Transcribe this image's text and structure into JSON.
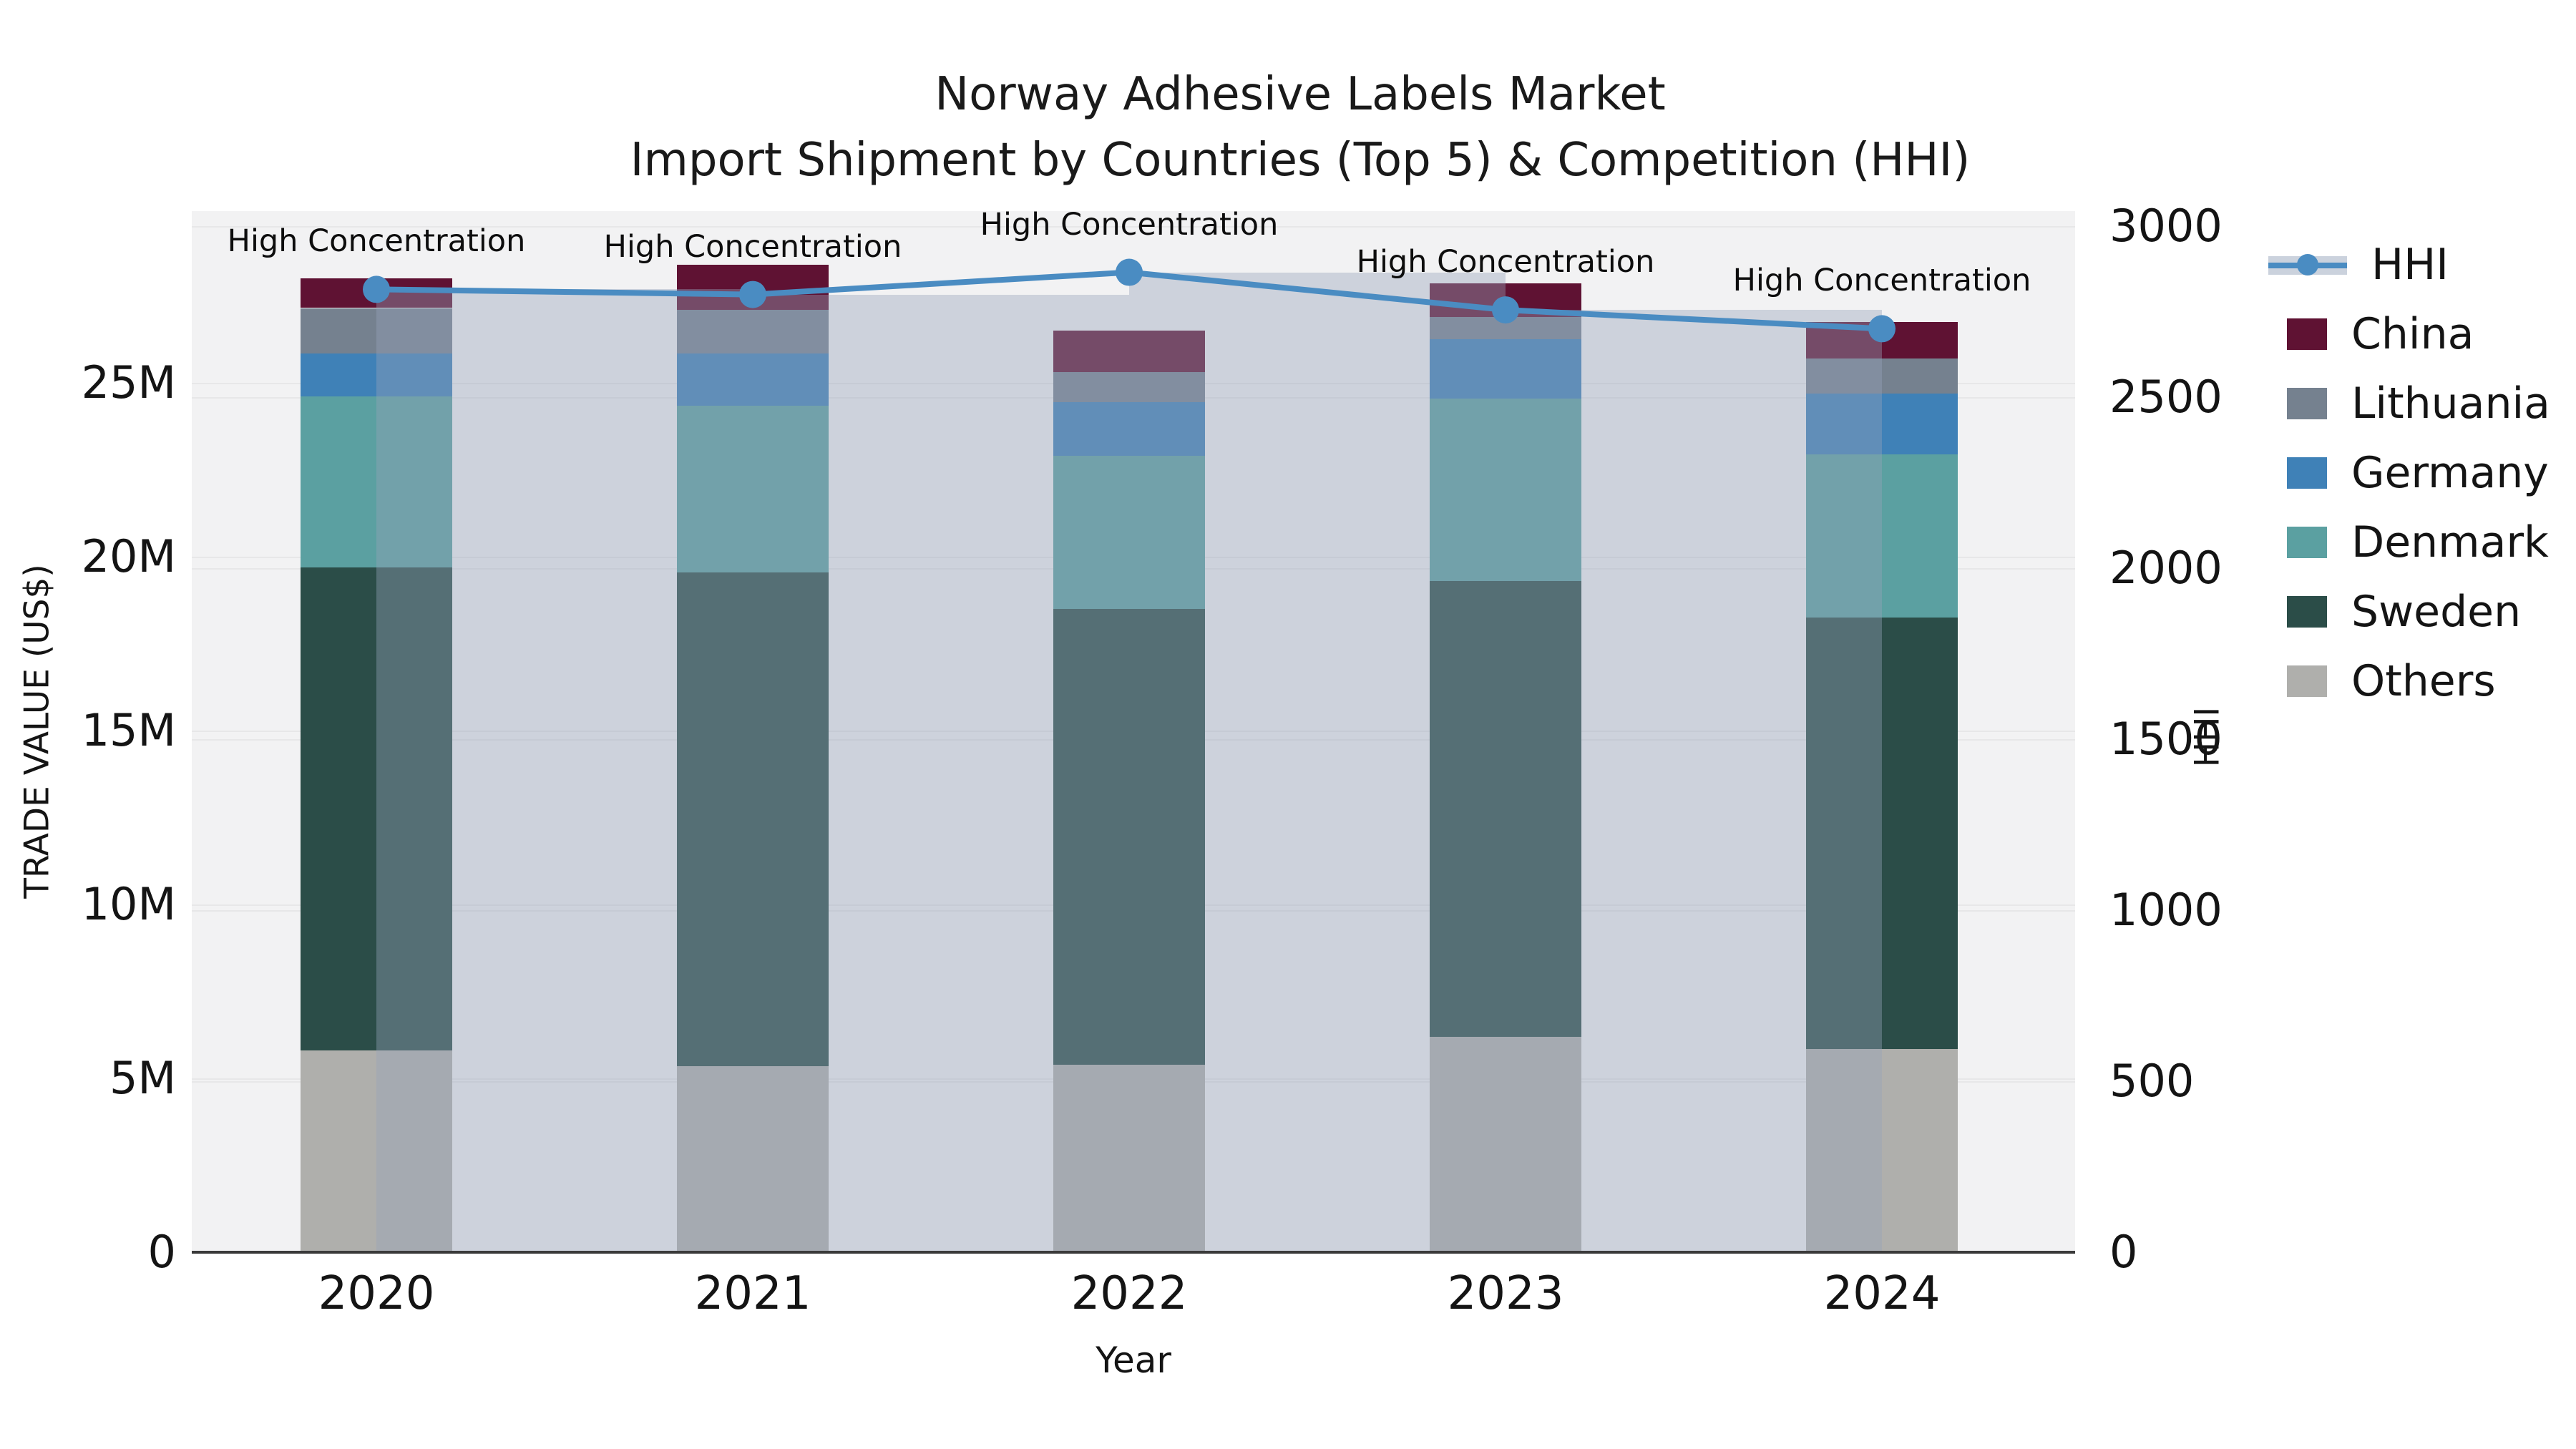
{
  "title": {
    "line1": "Norway Adhesive Labels Market",
    "line2": "Import Shipment by Countries (Top 5) & Competition (HHI)"
  },
  "axes": {
    "x": {
      "label": "Year",
      "ticks": [
        "2020",
        "2021",
        "2022",
        "2023",
        "2024"
      ]
    },
    "y_left": {
      "label": "TRADE VALUE (US$)",
      "ticks": [
        "0",
        "5M",
        "10M",
        "15M",
        "20M",
        "25M"
      ],
      "tick_values_millions": [
        0,
        5,
        10,
        15,
        20,
        25
      ]
    },
    "y_right": {
      "label": "HHI",
      "ticks": [
        "0",
        "500",
        "1000",
        "1500",
        "2000",
        "2500",
        "3000"
      ],
      "tick_values": [
        0,
        500,
        1000,
        1500,
        2000,
        2500,
        3000
      ]
    }
  },
  "legend": {
    "items": [
      {
        "label": "HHI",
        "type": "line",
        "color": "#4A8CC2"
      },
      {
        "label": "China",
        "type": "patch",
        "color": "#5F1233"
      },
      {
        "label": "Lithuania",
        "type": "patch",
        "color": "#75818F"
      },
      {
        "label": "Germany",
        "type": "patch",
        "color": "#3F81B7"
      },
      {
        "label": "Denmark",
        "type": "patch",
        "color": "#5BA0A1"
      },
      {
        "label": "Sweden",
        "type": "patch",
        "color": "#2B4D48"
      },
      {
        "label": "Others",
        "type": "patch",
        "color": "#AFAFAC"
      }
    ]
  },
  "colors": {
    "hhi_line": "#4A8CC2",
    "hhi_backdrop_fill": "rgba(150,163,185,0.40)",
    "plot_background": "#F2F2F3",
    "figure_background": "#FFFFFF",
    "gridline": "rgba(0,0,0,0.045)",
    "axis_line": "#3A3A3A",
    "text": "#141414"
  },
  "chart_data": {
    "type": "bar",
    "subtype": "stacked-bars-with-secondary-axis-line",
    "title": "Norway Adhesive Labels Market — Import Shipment by Countries (Top 5) & Competition (HHI)",
    "xlabel": "Year",
    "ylabel_left": "TRADE VALUE (US$)",
    "ylabel_right": "HHI",
    "categories": [
      "2020",
      "2021",
      "2022",
      "2023",
      "2024"
    ],
    "unit": "million US$",
    "stack_order_bottom_to_top": [
      "Others",
      "Sweden",
      "Denmark",
      "Germany",
      "Lithuania",
      "China"
    ],
    "series": [
      {
        "name": "China",
        "color": "#5F1233",
        "values": [
          0.85,
          1.3,
          1.2,
          0.95,
          1.05
        ]
      },
      {
        "name": "Lithuania",
        "color": "#75818F",
        "values": [
          1.3,
          1.25,
          0.85,
          0.65,
          1.0
        ]
      },
      {
        "name": "Germany",
        "color": "#3F81B7",
        "values": [
          1.25,
          1.5,
          1.55,
          1.7,
          1.75
        ]
      },
      {
        "name": "Denmark",
        "color": "#5BA0A1",
        "values": [
          4.9,
          4.8,
          4.4,
          5.25,
          4.7
        ]
      },
      {
        "name": "Sweden",
        "color": "#2B4D48",
        "values": [
          13.9,
          14.2,
          13.1,
          13.1,
          12.4
        ]
      },
      {
        "name": "Others",
        "color": "#AFAFAC",
        "values": [
          5.8,
          5.35,
          5.4,
          6.2,
          5.85
        ]
      }
    ],
    "line_series": {
      "name": "HHI",
      "axis": "right",
      "color": "#4A8CC2",
      "values": [
        2815,
        2800,
        2865,
        2755,
        2700
      ],
      "backdrop_bars_between_categories": true
    },
    "annotations": [
      "High Concentration",
      "High Concentration",
      "High Concentration",
      "High Concentration",
      "High Concentration"
    ],
    "ylim_left_millions": [
      0,
      29.9
    ],
    "ylim_right": [
      0,
      3045
    ],
    "grid": true,
    "legend_position": "right"
  }
}
